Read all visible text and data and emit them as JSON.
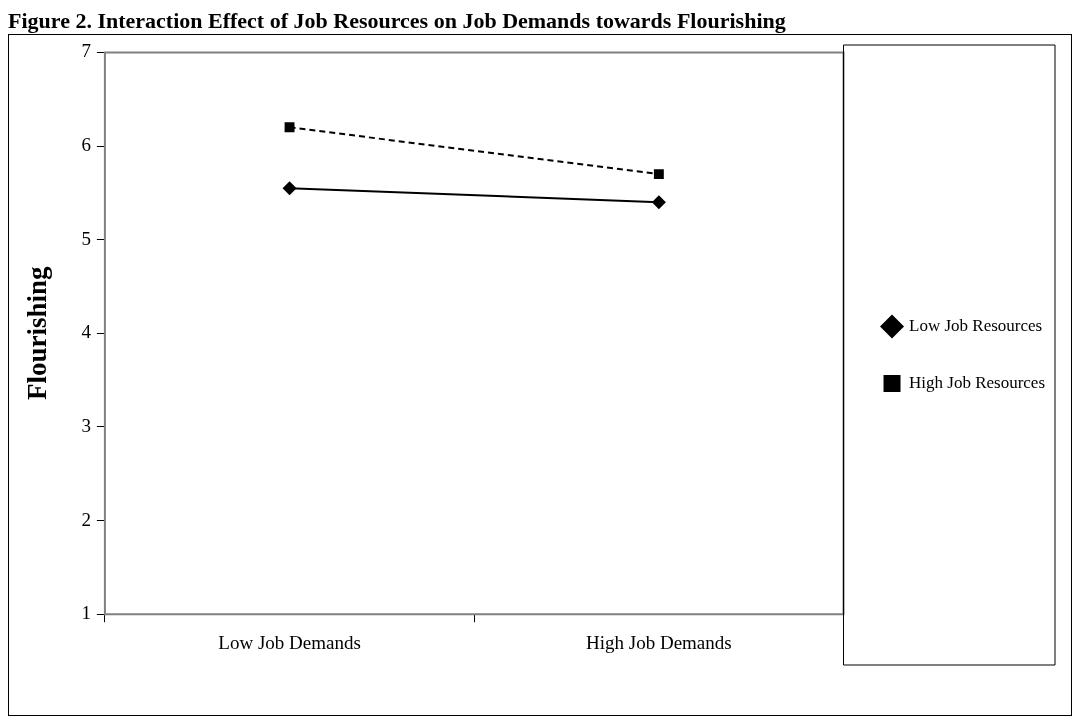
{
  "chart_data": {
    "type": "line",
    "title": "Figure 2. Interaction Effect of Job Resources on Job Demands towards Flourishing",
    "ylabel": "Flourishing",
    "categories": [
      "Low Job Demands",
      "High Job Demands"
    ],
    "series": [
      {
        "name": "Low Job Resources",
        "color": "#000000",
        "values": [
          5.55,
          5.4
        ],
        "marker": "diamond",
        "line_style": "solid"
      },
      {
        "name": "High Job Resources",
        "color": "#000000",
        "values": [
          6.2,
          5.7
        ],
        "marker": "square",
        "line_style": "dashed"
      }
    ],
    "ylim": [
      1,
      7
    ],
    "yticks": [
      1,
      2,
      3,
      4,
      5,
      6,
      7
    ],
    "grid": false,
    "legend": "right"
  }
}
